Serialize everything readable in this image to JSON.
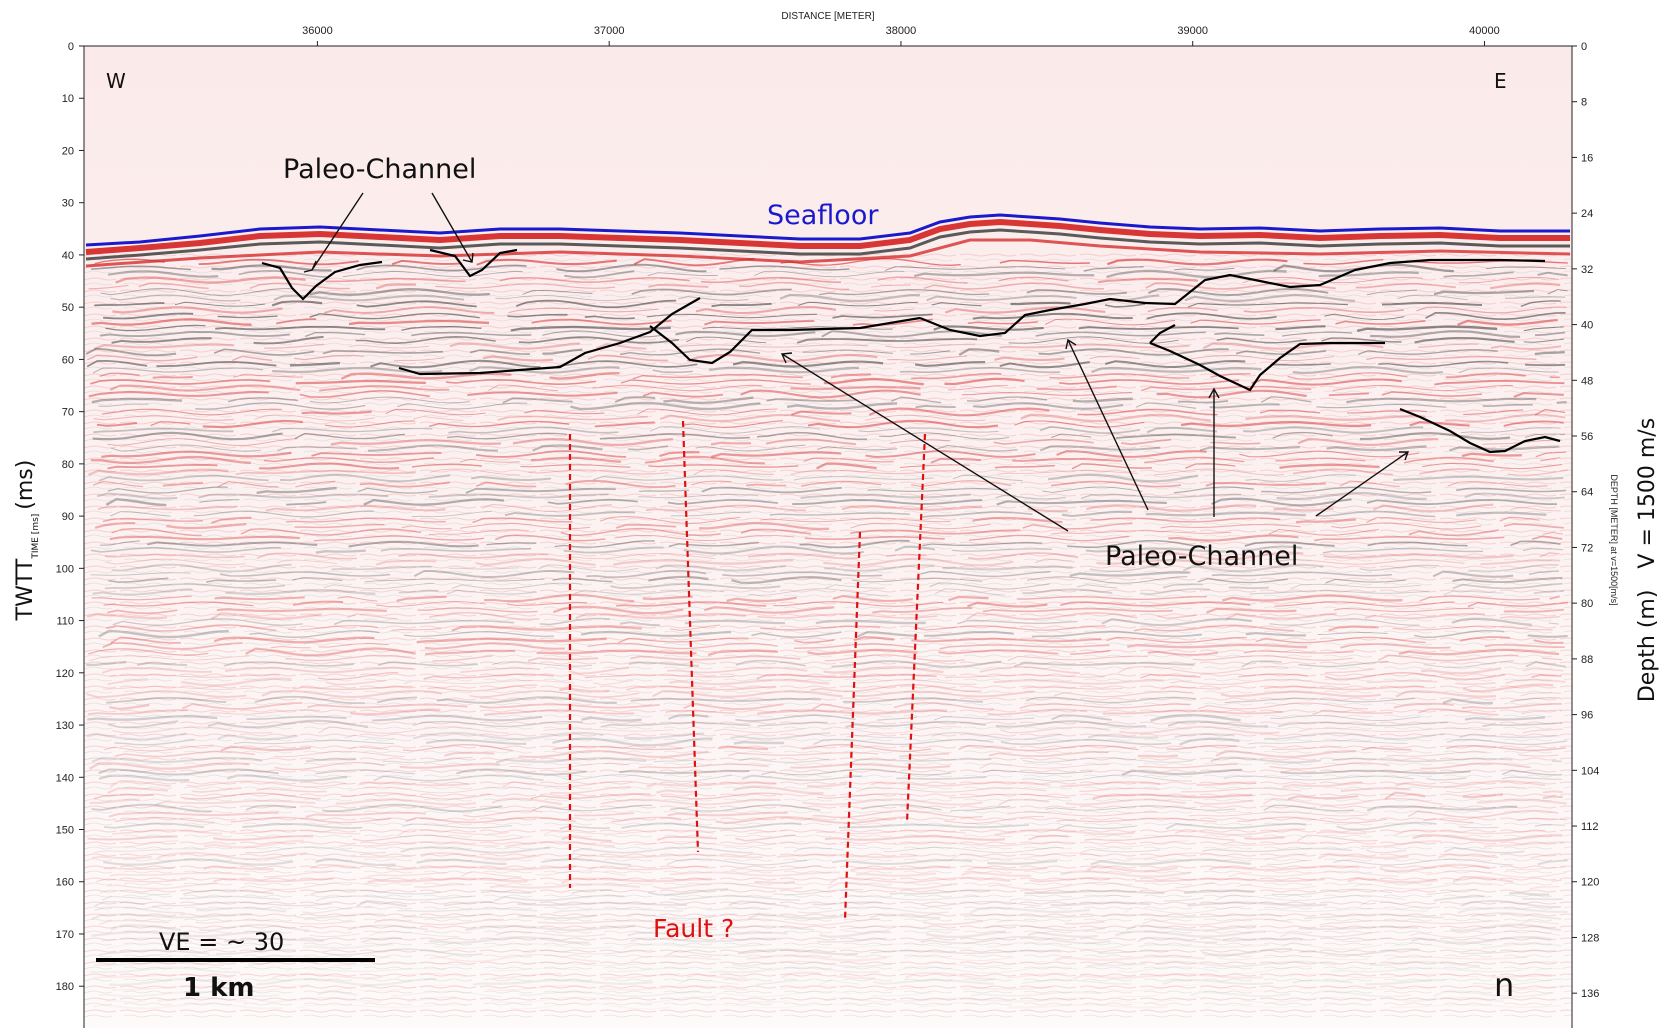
{
  "top_axis": {
    "title": "DISTANCE [METER]",
    "ticks": [
      36000,
      37000,
      38000,
      39000,
      40000
    ],
    "range": [
      35200,
      40300
    ]
  },
  "left_axis": {
    "title": "TWTT",
    "title_sub": "TIME [ms]",
    "title_unit": "(ms)",
    "ticks": [
      0,
      10,
      20,
      30,
      40,
      50,
      60,
      70,
      80,
      90,
      100,
      110,
      120,
      130,
      140,
      150,
      160,
      170,
      180
    ],
    "range": [
      0,
      188
    ]
  },
  "right_axis": {
    "title_small": "DEPTH [METER] at v=1500[m/s]",
    "title_big": "Depth (m)   V = 1500 m/s",
    "ticks": [
      0,
      8,
      16,
      24,
      32,
      40,
      48,
      56,
      64,
      72,
      80,
      88,
      96,
      104,
      112,
      120,
      128,
      136
    ],
    "range": [
      0,
      141
    ]
  },
  "labels": {
    "west": "W",
    "east": "E",
    "seafloor": "Seafloor",
    "paleo_channel_top": "Paleo-Channel",
    "paleo_channel_right": "Paleo-Channel",
    "fault": "Fault ?",
    "ve": "VE = ~ 30",
    "scale": "1 km",
    "panel": "n"
  },
  "colors": {
    "seafloor": "#1a1acc",
    "reflector_red": "#d42020",
    "reflector_dark": "#333333",
    "fault": "#e01010",
    "interpretation": "#000000"
  }
}
